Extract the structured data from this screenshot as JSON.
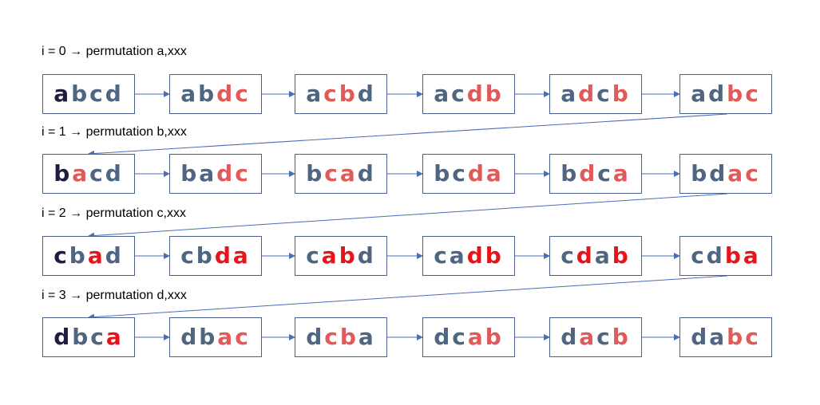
{
  "colors": {
    "dark": "#1f1d3d",
    "slate": "#4f6580",
    "light_red": "#e05a5a",
    "red": "#e8141b",
    "arrow": "#4a6fb5",
    "border": "#4a5f8a"
  },
  "rows": [
    {
      "label": "i = 0  →  permutation a,xxx",
      "boxes": [
        [
          [
            "a",
            "dark"
          ],
          [
            "b",
            "slate"
          ],
          [
            "c",
            "slate"
          ],
          [
            "d",
            "slate"
          ]
        ],
        [
          [
            "a",
            "slate"
          ],
          [
            "b",
            "slate"
          ],
          [
            "d",
            "light_red"
          ],
          [
            "c",
            "light_red"
          ]
        ],
        [
          [
            "a",
            "slate"
          ],
          [
            "c",
            "light_red"
          ],
          [
            "b",
            "light_red"
          ],
          [
            "d",
            "slate"
          ]
        ],
        [
          [
            "a",
            "slate"
          ],
          [
            "c",
            "slate"
          ],
          [
            "d",
            "light_red"
          ],
          [
            "b",
            "light_red"
          ]
        ],
        [
          [
            "a",
            "slate"
          ],
          [
            "d",
            "light_red"
          ],
          [
            "c",
            "slate"
          ],
          [
            "b",
            "light_red"
          ]
        ],
        [
          [
            "a",
            "slate"
          ],
          [
            "d",
            "slate"
          ],
          [
            "b",
            "light_red"
          ],
          [
            "c",
            "light_red"
          ]
        ]
      ]
    },
    {
      "label": "i = 1  →  permutation b,xxx",
      "boxes": [
        [
          [
            "b",
            "dark"
          ],
          [
            "a",
            "light_red"
          ],
          [
            "c",
            "slate"
          ],
          [
            "d",
            "slate"
          ]
        ],
        [
          [
            "b",
            "slate"
          ],
          [
            "a",
            "slate"
          ],
          [
            "d",
            "light_red"
          ],
          [
            "c",
            "light_red"
          ]
        ],
        [
          [
            "b",
            "slate"
          ],
          [
            "c",
            "light_red"
          ],
          [
            "a",
            "light_red"
          ],
          [
            "d",
            "slate"
          ]
        ],
        [
          [
            "b",
            "slate"
          ],
          [
            "c",
            "slate"
          ],
          [
            "d",
            "light_red"
          ],
          [
            "a",
            "light_red"
          ]
        ],
        [
          [
            "b",
            "slate"
          ],
          [
            "d",
            "light_red"
          ],
          [
            "c",
            "slate"
          ],
          [
            "a",
            "light_red"
          ]
        ],
        [
          [
            "b",
            "slate"
          ],
          [
            "d",
            "slate"
          ],
          [
            "a",
            "light_red"
          ],
          [
            "c",
            "light_red"
          ]
        ]
      ]
    },
    {
      "label": "i = 2  →  permutation c,xxx",
      "boxes": [
        [
          [
            "c",
            "dark"
          ],
          [
            "b",
            "slate"
          ],
          [
            "a",
            "red"
          ],
          [
            "d",
            "slate"
          ]
        ],
        [
          [
            "c",
            "slate"
          ],
          [
            "b",
            "slate"
          ],
          [
            "d",
            "red"
          ],
          [
            "a",
            "red"
          ]
        ],
        [
          [
            "c",
            "slate"
          ],
          [
            "a",
            "red"
          ],
          [
            "b",
            "red"
          ],
          [
            "d",
            "slate"
          ]
        ],
        [
          [
            "c",
            "slate"
          ],
          [
            "a",
            "slate"
          ],
          [
            "d",
            "red"
          ],
          [
            "b",
            "red"
          ]
        ],
        [
          [
            "c",
            "slate"
          ],
          [
            "d",
            "red"
          ],
          [
            "a",
            "slate"
          ],
          [
            "b",
            "red"
          ]
        ],
        [
          [
            "c",
            "slate"
          ],
          [
            "d",
            "slate"
          ],
          [
            "b",
            "red"
          ],
          [
            "a",
            "red"
          ]
        ]
      ]
    },
    {
      "label": "i = 3  →  permutation d,xxx",
      "boxes": [
        [
          [
            "d",
            "dark"
          ],
          [
            "b",
            "slate"
          ],
          [
            "c",
            "slate"
          ],
          [
            "a",
            "red"
          ]
        ],
        [
          [
            "d",
            "slate"
          ],
          [
            "b",
            "slate"
          ],
          [
            "a",
            "light_red"
          ],
          [
            "c",
            "light_red"
          ]
        ],
        [
          [
            "d",
            "slate"
          ],
          [
            "c",
            "light_red"
          ],
          [
            "b",
            "light_red"
          ],
          [
            "a",
            "slate"
          ]
        ],
        [
          [
            "d",
            "slate"
          ],
          [
            "c",
            "slate"
          ],
          [
            "a",
            "light_red"
          ],
          [
            "b",
            "light_red"
          ]
        ],
        [
          [
            "d",
            "slate"
          ],
          [
            "a",
            "light_red"
          ],
          [
            "c",
            "slate"
          ],
          [
            "b",
            "light_red"
          ]
        ],
        [
          [
            "d",
            "slate"
          ],
          [
            "a",
            "slate"
          ],
          [
            "b",
            "light_red"
          ],
          [
            "c",
            "light_red"
          ]
        ]
      ]
    }
  ]
}
